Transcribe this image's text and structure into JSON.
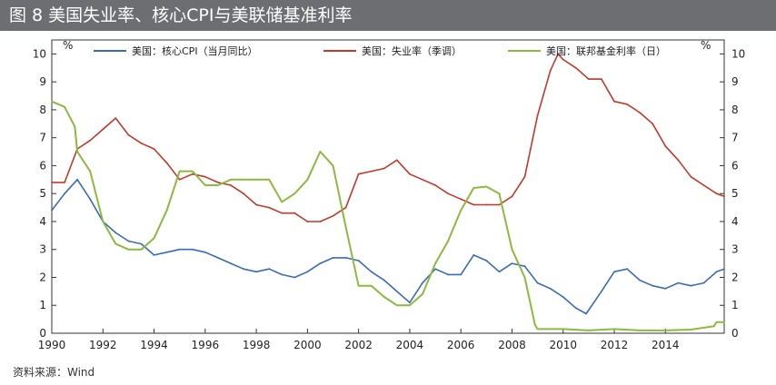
{
  "figure": {
    "title": "图 8  美国失业率、核心CPI与美联储基准利率",
    "source": "资料来源：Wind"
  },
  "chart_data": {
    "type": "line",
    "title": "图 8  美国失业率、核心CPI与美联储基准利率",
    "x_range": [
      1990,
      2016.3
    ],
    "x_ticks": [
      "1990",
      "1992",
      "1994",
      "1996",
      "1998",
      "2000",
      "2002",
      "2004",
      "2006",
      "2008",
      "2010",
      "2012",
      "2014"
    ],
    "y_left": {
      "unit": "%",
      "range": [
        0,
        10.5
      ],
      "ticks": [
        0,
        1,
        2,
        3,
        4,
        5,
        6,
        7,
        8,
        9,
        10
      ]
    },
    "y_right": {
      "unit": "%",
      "range": [
        0,
        10.5
      ],
      "ticks": [
        0,
        1,
        2,
        3,
        4,
        5,
        6,
        7,
        8,
        9,
        10
      ]
    },
    "grid": false,
    "legend_position": "top",
    "series": [
      {
        "name": "美国：核心CPI（当月同比）",
        "color": "#3a6bb5",
        "x": [
          1990.0,
          1990.5,
          1991.0,
          1991.5,
          1992.0,
          1992.5,
          1993.0,
          1993.5,
          1994.0,
          1994.5,
          1995.0,
          1995.5,
          1996.0,
          1996.5,
          1997.0,
          1997.5,
          1998.0,
          1998.5,
          1999.0,
          1999.5,
          2000.0,
          2000.5,
          2001.0,
          2001.5,
          2002.0,
          2002.5,
          2003.0,
          2003.5,
          2004.0,
          2004.5,
          2005.0,
          2005.5,
          2006.0,
          2006.5,
          2007.0,
          2007.5,
          2008.0,
          2008.5,
          2009.0,
          2009.5,
          2010.0,
          2010.5,
          2010.9,
          2011.5,
          2012.0,
          2012.5,
          2013.0,
          2013.5,
          2014.0,
          2014.5,
          2015.0,
          2015.5,
          2016.0,
          2016.3
        ],
        "values": [
          4.4,
          5.0,
          5.5,
          4.8,
          4.0,
          3.6,
          3.3,
          3.2,
          2.8,
          2.9,
          3.0,
          3.0,
          2.9,
          2.7,
          2.5,
          2.3,
          2.2,
          2.3,
          2.1,
          2.0,
          2.2,
          2.5,
          2.7,
          2.7,
          2.6,
          2.2,
          1.9,
          1.5,
          1.1,
          1.8,
          2.3,
          2.1,
          2.1,
          2.8,
          2.6,
          2.2,
          2.5,
          2.4,
          1.8,
          1.6,
          1.3,
          0.9,
          0.7,
          1.5,
          2.2,
          2.3,
          1.9,
          1.7,
          1.6,
          1.8,
          1.7,
          1.8,
          2.2,
          2.3
        ]
      },
      {
        "name": "美国：失业率（季调）",
        "color": "#c0392b",
        "x": [
          1990.0,
          1990.5,
          1991.0,
          1991.5,
          1992.0,
          1992.5,
          1993.0,
          1993.5,
          1994.0,
          1994.5,
          1995.0,
          1995.5,
          1996.0,
          1996.5,
          1997.0,
          1997.5,
          1998.0,
          1998.5,
          1999.0,
          1999.5,
          2000.0,
          2000.5,
          2001.0,
          2001.5,
          2002.0,
          2002.5,
          2003.0,
          2003.5,
          2004.0,
          2004.5,
          2005.0,
          2005.5,
          2006.0,
          2006.5,
          2007.0,
          2007.5,
          2008.0,
          2008.5,
          2009.0,
          2009.5,
          2009.8,
          2010.0,
          2010.5,
          2011.0,
          2011.5,
          2012.0,
          2012.5,
          2013.0,
          2013.5,
          2014.0,
          2014.5,
          2015.0,
          2015.5,
          2016.0,
          2016.3
        ],
        "values": [
          5.4,
          5.4,
          6.6,
          6.9,
          7.3,
          7.7,
          7.1,
          6.8,
          6.6,
          6.1,
          5.5,
          5.7,
          5.6,
          5.4,
          5.3,
          5.0,
          4.6,
          4.5,
          4.3,
          4.3,
          4.0,
          4.0,
          4.2,
          4.5,
          5.7,
          5.8,
          5.9,
          6.2,
          5.7,
          5.5,
          5.3,
          5.0,
          4.8,
          4.6,
          4.6,
          4.6,
          4.9,
          5.6,
          7.8,
          9.4,
          10.0,
          9.8,
          9.5,
          9.1,
          9.1,
          8.3,
          8.2,
          7.9,
          7.5,
          6.7,
          6.2,
          5.6,
          5.3,
          5.0,
          4.9
        ]
      },
      {
        "name": "美国：联邦基金利率（日）",
        "color": "#8cb93f",
        "x": [
          1990.0,
          1990.5,
          1990.9,
          1991.0,
          1991.5,
          1992.0,
          1992.5,
          1993.0,
          1993.5,
          1994.0,
          1994.5,
          1995.0,
          1995.5,
          1996.0,
          1996.5,
          1997.0,
          1997.5,
          1998.0,
          1998.5,
          1999.0,
          1999.5,
          2000.0,
          2000.5,
          2001.0,
          2001.5,
          2002.0,
          2002.5,
          2003.0,
          2003.5,
          2004.0,
          2004.5,
          2005.0,
          2005.5,
          2006.0,
          2006.5,
          2007.0,
          2007.5,
          2008.0,
          2008.5,
          2008.9,
          2009.0,
          2010.0,
          2011.0,
          2012.0,
          2013.0,
          2014.0,
          2015.0,
          2015.9,
          2016.0,
          2016.3
        ],
        "values": [
          8.3,
          8.1,
          7.4,
          6.5,
          5.8,
          4.0,
          3.2,
          3.0,
          3.0,
          3.4,
          4.4,
          5.8,
          5.8,
          5.3,
          5.3,
          5.5,
          5.5,
          5.5,
          5.5,
          4.7,
          5.0,
          5.5,
          6.5,
          6.0,
          3.8,
          1.7,
          1.7,
          1.3,
          1.0,
          1.0,
          1.4,
          2.5,
          3.3,
          4.4,
          5.2,
          5.25,
          5.0,
          3.0,
          2.0,
          0.3,
          0.15,
          0.15,
          0.1,
          0.15,
          0.1,
          0.1,
          0.13,
          0.25,
          0.4,
          0.4
        ]
      }
    ]
  }
}
